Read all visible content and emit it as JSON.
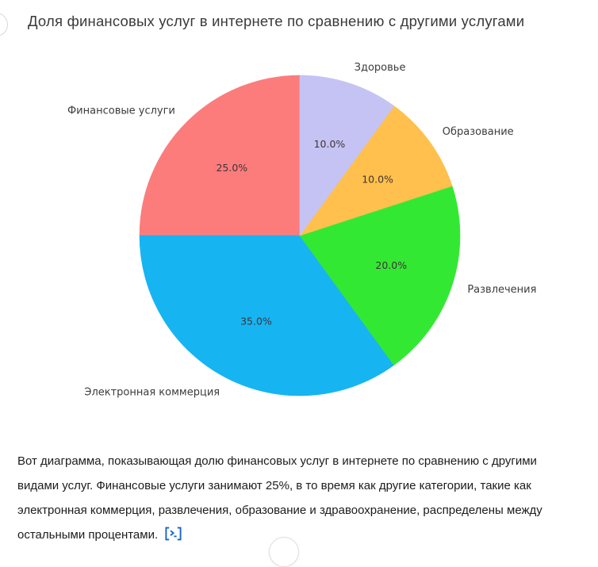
{
  "title": "Доля финансовых услуг в интернете по сравнению с другими услугами",
  "chart_data": {
    "type": "pie",
    "title": "Доля финансовых услуг в интернете по сравнению с другими услугами",
    "slices": [
      {
        "label": "Финансовые услуги",
        "value": 25.0,
        "pct_label": "25.0%",
        "color": "#fc7c7c"
      },
      {
        "label": "Электронная коммерция",
        "value": 35.0,
        "pct_label": "35.0%",
        "color": "#17b4f2"
      },
      {
        "label": "Развлечения",
        "value": 20.0,
        "pct_label": "20.0%",
        "color": "#33e833"
      },
      {
        "label": "Образование",
        "value": 10.0,
        "pct_label": "10.0%",
        "color": "#ffc04d"
      },
      {
        "label": "Здоровье",
        "value": 10.0,
        "pct_label": "10.0%",
        "color": "#c5c3f4"
      }
    ],
    "start_angle_deg": 90,
    "direction": "counterclockwise",
    "label_distance": 1.1,
    "pct_distance": 0.6,
    "legend": "none"
  },
  "message": {
    "lines": [
      "Вот диаграмма, показывающая долю финансовых услуг в интернете по сравнению с другими",
      "видами услуг. Финансовые услуги занимают 25%, в то время как другие категории, такие как",
      "электронная коммерция, развлечения, образование и здравоохранение, распределены между",
      "остальными процентами."
    ],
    "citation_icon": "code-terminal-icon",
    "citation_color": "#1466cc"
  }
}
